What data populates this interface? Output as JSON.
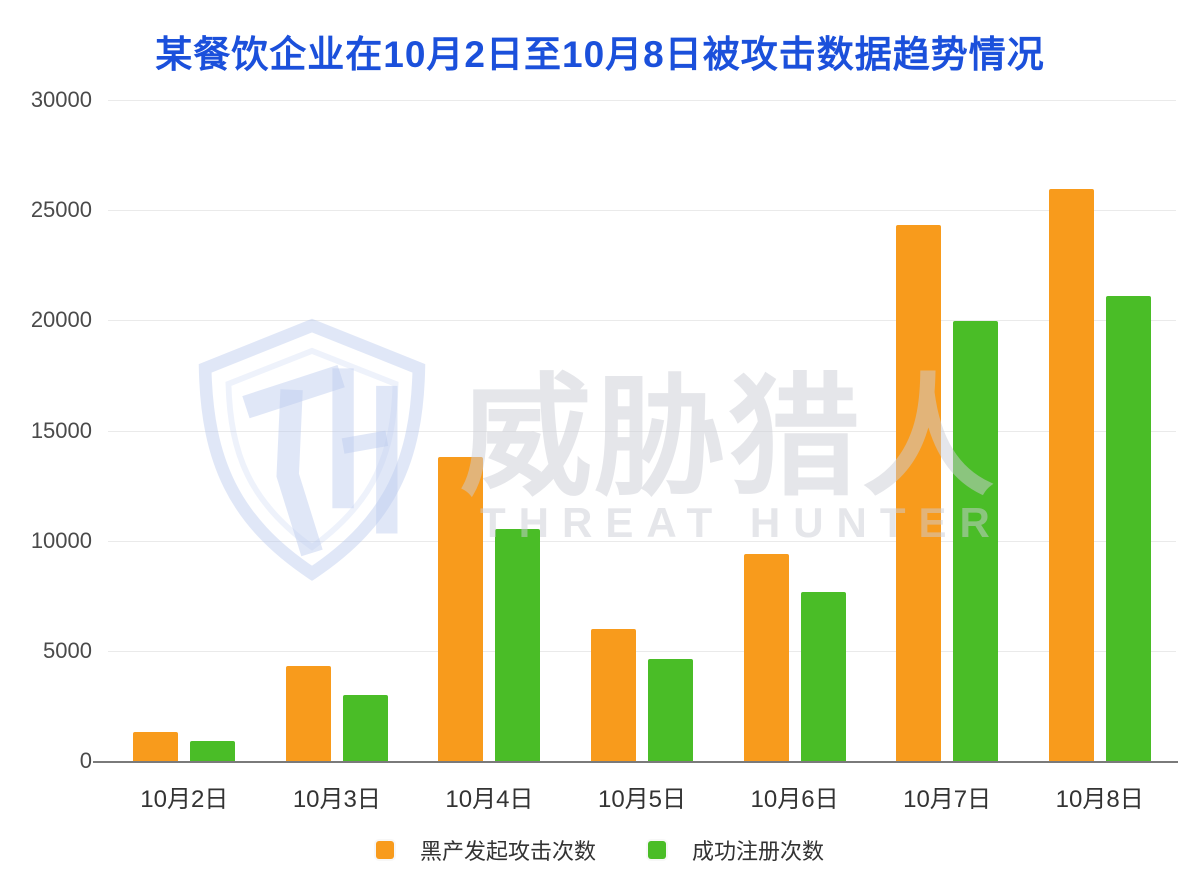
{
  "title": "某餐饮企业在10月2日至10月8日被攻击数据趋势情况",
  "title_color": "#1B50DB",
  "watermark": {
    "logo_icon": "threat-hunter-shield-icon",
    "cn_text": "威胁猎人",
    "en_text": "THREAT HUNTER"
  },
  "chart_data": {
    "type": "bar",
    "title": "某餐饮企业在10月2日至10月8日被攻击数据趋势情况",
    "categories": [
      "10月2日",
      "10月3日",
      "10月4日",
      "10月5日",
      "10月6日",
      "10月7日",
      "10月8日"
    ],
    "series": [
      {
        "name": "黑产发起攻击次数",
        "color": "#F89B1C",
        "values": [
          1300,
          4300,
          13800,
          6000,
          9400,
          24350,
          25950
        ]
      },
      {
        "name": "成功注册次数",
        "color": "#4ABD27",
        "values": [
          900,
          3000,
          10550,
          4650,
          7650,
          19950,
          21100
        ]
      }
    ],
    "xlabel": "",
    "ylabel": "",
    "ylim": [
      0,
      30000
    ],
    "y_ticks": [
      0,
      5000,
      10000,
      15000,
      20000,
      25000,
      30000
    ],
    "grid": true,
    "legend_position": "bottom",
    "grid_color": "#EAEAEA",
    "axis_line_color": "#7A7A7A",
    "tick_label_color": "#4A4A4A"
  }
}
